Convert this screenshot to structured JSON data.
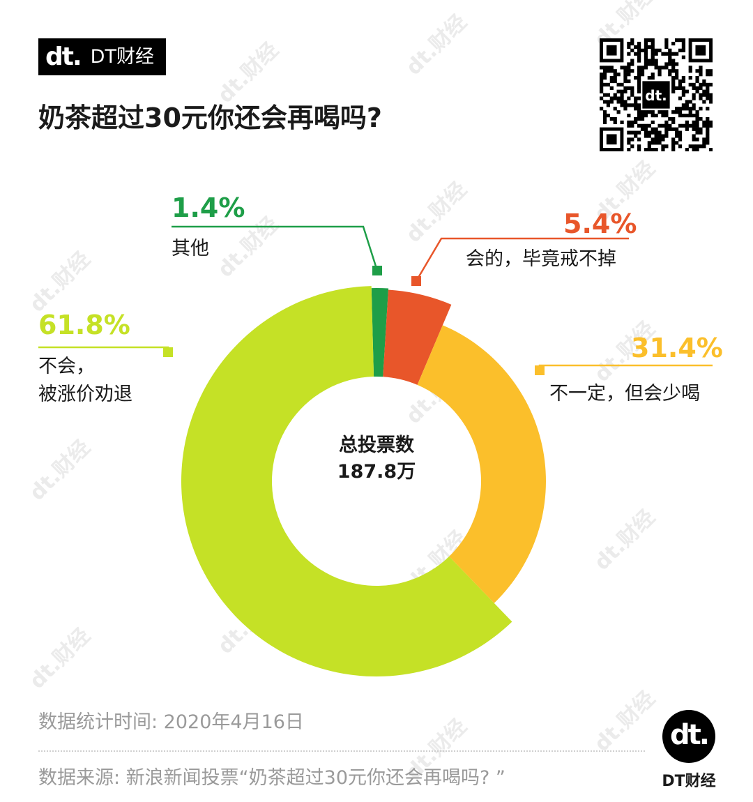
{
  "brand": {
    "mark": "dt.",
    "name": "DT财经"
  },
  "title": "奶茶超过30元你还会再喝吗?",
  "watermark_text": "dt.财经",
  "chart_data": {
    "type": "pie",
    "title": "奶茶超过30元你还会再喝吗?",
    "center_label": "总投票数",
    "center_value": "187.8万",
    "slices": [
      {
        "label": "其他",
        "value": 1.4,
        "display": "1.4%",
        "color": "#1e9e48"
      },
      {
        "label": "会的，毕竟戒不掉",
        "value": 5.4,
        "display": "5.4%",
        "color": "#e8562a"
      },
      {
        "label": "不一定，但会少喝",
        "value": 31.4,
        "display": "31.4%",
        "color": "#fbbf2b"
      },
      {
        "label": "不会，\n被涨价劝退",
        "value": 61.8,
        "display": "61.8%",
        "color": "#c5e126"
      }
    ]
  },
  "footer": {
    "stat_time": "数据统计时间: 2020年4月16日",
    "source": "数据来源: 新浪新闻投票“奶茶超过30元你还会再喝吗? ”"
  },
  "logo": {
    "mark": "dt.",
    "name": "DT财经"
  }
}
